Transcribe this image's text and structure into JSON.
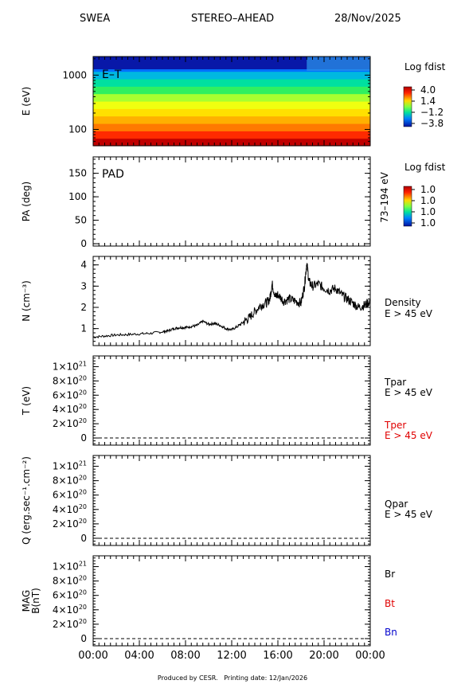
{
  "header": {
    "instrument": "SWEA",
    "spacecraft": "STEREO–AHEAD",
    "date": "28/Nov/2025"
  },
  "footer": "Produced by CESR.   Printing date: 12/Jan/2026",
  "x_tick_labels": [
    "00:00",
    "04:00",
    "08:00",
    "12:00",
    "16:00",
    "20:00",
    "00:00"
  ],
  "colors": {
    "red_label": "#e00000",
    "blue_label": "#0000cc",
    "line": "#000000"
  },
  "chart_data": [
    {
      "type": "heatmap",
      "id": "energy_time",
      "annotation": "E–T",
      "ylabel": "E (eV)",
      "y_scale": "log",
      "ylim": [
        50,
        2200
      ],
      "y_ticks": [
        100,
        1000
      ],
      "y_tick_labels": [
        "100",
        "1000"
      ],
      "x_hours": [
        0,
        24
      ],
      "colorbar": {
        "title": "Log fdist",
        "tick_labels": [
          "4.0",
          "1.4",
          "−1.2",
          "−3.8"
        ]
      }
    },
    {
      "type": "heatmap",
      "id": "pad",
      "annotation": "PAD",
      "ylabel": "PA (deg)",
      "ylim": [
        -5,
        185
      ],
      "y_ticks": [
        0,
        50,
        100,
        150
      ],
      "y_tick_labels": [
        "0",
        "50",
        "100",
        "150"
      ],
      "right_label": "73–194 eV",
      "colorbar": {
        "title": "Log fdist",
        "tick_labels": [
          "1.0",
          "1.0",
          "1.0",
          "1.0"
        ]
      }
    },
    {
      "type": "line",
      "id": "density",
      "ylabel": "N (cm⁻³)",
      "ylim": [
        0.2,
        4.4
      ],
      "y_ticks": [
        1,
        2,
        3,
        4
      ],
      "y_tick_labels": [
        "1",
        "2",
        "3",
        "4"
      ],
      "legend": [
        {
          "text": "Density",
          "color": "#000000"
        },
        {
          "text": "E > 45 eV",
          "color": "#000000"
        }
      ],
      "x": [
        0,
        1,
        2,
        3,
        4,
        5,
        6,
        6.5,
        7,
        7.5,
        8,
        8.5,
        9,
        9.5,
        10,
        10.5,
        11,
        11.5,
        12,
        12.5,
        13,
        13.5,
        14,
        14.5,
        15,
        15.3,
        15.5,
        15.8,
        16,
        16.5,
        17,
        17.5,
        18,
        18.3,
        18.5,
        18.7,
        19,
        19.5,
        20,
        20.5,
        21,
        21.5,
        22,
        22.5,
        23,
        23.5,
        24
      ],
      "values": [
        0.6,
        0.65,
        0.7,
        0.72,
        0.75,
        0.78,
        0.85,
        0.9,
        1.0,
        1.05,
        1.05,
        1.1,
        1.15,
        1.35,
        1.2,
        1.25,
        1.15,
        1.0,
        0.95,
        1.1,
        1.3,
        1.5,
        1.8,
        2.1,
        2.2,
        2.4,
        3.1,
        2.5,
        2.6,
        2.3,
        2.4,
        2.3,
        2.2,
        3.0,
        4.1,
        3.2,
        3.0,
        3.1,
        2.9,
        2.8,
        2.9,
        2.6,
        2.4,
        2.2,
        2.0,
        2.1,
        2.3
      ]
    },
    {
      "type": "line",
      "id": "temperature",
      "ylabel": "T (eV)",
      "ylim": [
        -1e+20,
        1.15e+21
      ],
      "y_ticks": [
        0,
        2e+20,
        4e+20,
        6e+20,
        8e+20,
        1e+21
      ],
      "y_tick_mantissa": [
        "0",
        "2×10",
        "4×10",
        "6×10",
        "8×10",
        "1×10"
      ],
      "y_tick_exponent": [
        "",
        "20",
        "20",
        "20",
        "20",
        "21"
      ],
      "legend": [
        {
          "text": "Tpar",
          "color": "#000000"
        },
        {
          "text": "E > 45 eV",
          "color": "#000000"
        },
        {
          "text": "Tper",
          "color": "#e00000"
        },
        {
          "text": "E > 45 eV",
          "color": "#e00000"
        }
      ],
      "series": [
        {
          "values": [
            0,
            0
          ]
        }
      ],
      "x": [
        0,
        24
      ]
    },
    {
      "type": "line",
      "id": "heat_flux",
      "ylabel": "Q (erg.sec⁻¹.cm⁻²)",
      "ylim": [
        -1e+20,
        1.15e+21
      ],
      "y_ticks": [
        0,
        2e+20,
        4e+20,
        6e+20,
        8e+20,
        1e+21
      ],
      "y_tick_mantissa": [
        "0",
        "2×10",
        "4×10",
        "6×10",
        "8×10",
        "1×10"
      ],
      "y_tick_exponent": [
        "",
        "20",
        "20",
        "20",
        "20",
        "21"
      ],
      "legend": [
        {
          "text": "Qpar",
          "color": "#000000"
        },
        {
          "text": "E > 45 eV",
          "color": "#000000"
        }
      ],
      "series": [
        {
          "values": [
            0,
            0
          ]
        }
      ],
      "x": [
        0,
        24
      ]
    },
    {
      "type": "line",
      "id": "magnetic_field",
      "ylabel": "MAG",
      "ylabel2": "B(nT)",
      "ylim": [
        -1e+20,
        1.15e+21
      ],
      "y_ticks": [
        0,
        2e+20,
        4e+20,
        6e+20,
        8e+20,
        1e+21
      ],
      "y_tick_mantissa": [
        "0",
        "2×10",
        "4×10",
        "6×10",
        "8×10",
        "1×10"
      ],
      "y_tick_exponent": [
        "",
        "20",
        "20",
        "20",
        "20",
        "21"
      ],
      "legend": [
        {
          "text": "Br",
          "color": "#000000"
        },
        {
          "text": "Bt",
          "color": "#e00000"
        },
        {
          "text": "Bn",
          "color": "#0000cc"
        }
      ],
      "series": [
        {
          "values": [
            0,
            0
          ]
        }
      ],
      "x": [
        0,
        24
      ]
    }
  ]
}
